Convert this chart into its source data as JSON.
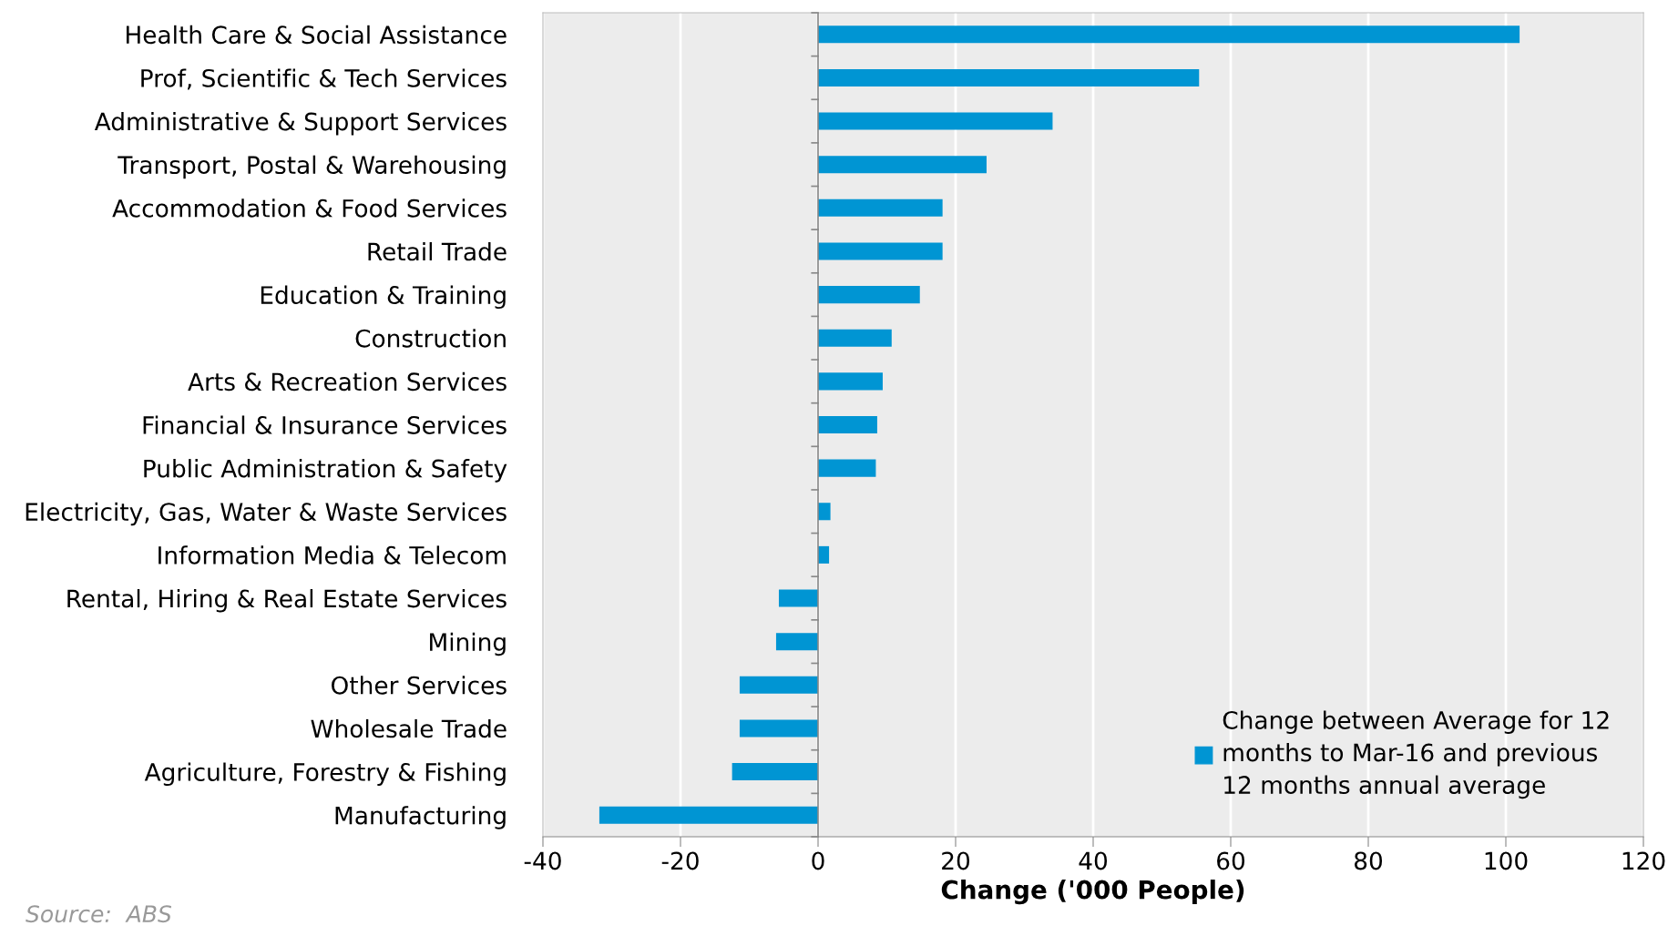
{
  "chart_data": {
    "type": "bar",
    "orientation": "horizontal",
    "xlabel": "Change ('000 People)",
    "categories": [
      "Health Care & Social Assistance",
      "Prof, Scientific & Tech Services",
      "Administrative & Support Services",
      "Transport, Postal & Warehousing",
      "Accommodation & Food Services",
      "Retail Trade",
      "Education & Training",
      "Construction",
      "Arts & Recreation Services",
      "Financial & Insurance Services",
      "Public Administration & Safety",
      "Electricity, Gas, Water & Waste Services",
      "Information Media & Telecom",
      "Rental, Hiring & Real Estate Services",
      "Mining",
      "Other Services",
      "Wholesale Trade",
      "Agriculture, Forestry & Fishing",
      "Manufacturing"
    ],
    "series": [
      {
        "name": "Change between Average for 12 months to Mar-16 and previous 12 months annual average",
        "color": "#0095d3",
        "values": [
          102,
          55.4,
          34.1,
          24.5,
          18.1,
          18.1,
          14.8,
          10.7,
          9.4,
          8.6,
          8.4,
          1.8,
          1.6,
          -5.7,
          -6.1,
          -11.4,
          -11.4,
          -12.5,
          -31.8
        ]
      }
    ],
    "xlim": [
      -40,
      120
    ],
    "xticks": [
      -40,
      -20,
      0,
      20,
      40,
      60,
      80,
      100,
      120
    ],
    "grid": "x",
    "legend": "bottom right",
    "annotations": [
      "Source:  ABS"
    ]
  }
}
